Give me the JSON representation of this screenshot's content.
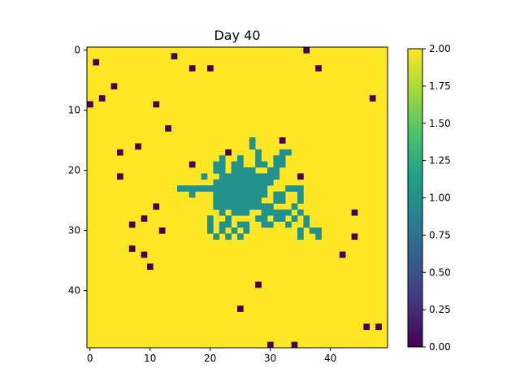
{
  "chart_data": {
    "type": "heatmap",
    "title": "Day 40",
    "xlabel": "",
    "ylabel": "",
    "grid_size": [
      50,
      50
    ],
    "xlim": [
      -0.5,
      49.5
    ],
    "ylim": [
      49.5,
      -0.5
    ],
    "x_ticks": [
      0,
      10,
      20,
      30,
      40
    ],
    "y_ticks": [
      0,
      10,
      20,
      30,
      40
    ],
    "colormap": "viridis",
    "colors": {
      "0": "#440154",
      "1": "#21918c",
      "2": "#fde725"
    },
    "background_value": 2,
    "colorbar": {
      "range": [
        0,
        2
      ],
      "ticks": [
        "0.00",
        "0.25",
        "0.50",
        "0.75",
        "1.00",
        "1.25",
        "1.50",
        "1.75",
        "2.00"
      ],
      "gradient": [
        "#440154",
        "#46327e",
        "#365c8d",
        "#277f8e",
        "#1fa187",
        "#4ac16d",
        "#a0da39",
        "#fde725"
      ]
    },
    "value_0_cells": [
      [
        36,
        0
      ],
      [
        1,
        2
      ],
      [
        14,
        1
      ],
      [
        17,
        3
      ],
      [
        20,
        3
      ],
      [
        38,
        3
      ],
      [
        4,
        6
      ],
      [
        2,
        8
      ],
      [
        47,
        8
      ],
      [
        0,
        9
      ],
      [
        11,
        9
      ],
      [
        13,
        13
      ],
      [
        32,
        15
      ],
      [
        8,
        16
      ],
      [
        5,
        17
      ],
      [
        23,
        17
      ],
      [
        17,
        19
      ],
      [
        5,
        21
      ],
      [
        35,
        21
      ],
      [
        11,
        26
      ],
      [
        44,
        27
      ],
      [
        9,
        28
      ],
      [
        7,
        29
      ],
      [
        12,
        30
      ],
      [
        44,
        31
      ],
      [
        7,
        33
      ],
      [
        9,
        34
      ],
      [
        42,
        34
      ],
      [
        10,
        36
      ],
      [
        28,
        39
      ],
      [
        25,
        43
      ],
      [
        46,
        46
      ],
      [
        48,
        46
      ],
      [
        30,
        49
      ],
      [
        34,
        49
      ]
    ],
    "value_1_cells": [
      [
        27,
        15
      ],
      [
        27,
        16
      ],
      [
        28,
        17
      ],
      [
        32,
        17
      ],
      [
        33,
        17
      ],
      [
        22,
        18
      ],
      [
        25,
        18
      ],
      [
        28,
        18
      ],
      [
        31,
        18
      ],
      [
        32,
        18
      ],
      [
        21,
        19
      ],
      [
        22,
        19
      ],
      [
        24,
        19
      ],
      [
        25,
        19
      ],
      [
        28,
        19
      ],
      [
        29,
        19
      ],
      [
        31,
        19
      ],
      [
        32,
        19
      ],
      [
        21,
        20
      ],
      [
        22,
        20
      ],
      [
        24,
        20
      ],
      [
        25,
        20
      ],
      [
        26,
        20
      ],
      [
        27,
        20
      ],
      [
        30,
        20
      ],
      [
        31,
        20
      ],
      [
        19,
        21
      ],
      [
        22,
        21
      ],
      [
        23,
        21
      ],
      [
        24,
        21
      ],
      [
        25,
        21
      ],
      [
        26,
        21
      ],
      [
        27,
        21
      ],
      [
        28,
        21
      ],
      [
        29,
        21
      ],
      [
        30,
        21
      ],
      [
        31,
        21
      ],
      [
        21,
        22
      ],
      [
        22,
        22
      ],
      [
        23,
        22
      ],
      [
        24,
        22
      ],
      [
        25,
        22
      ],
      [
        26,
        22
      ],
      [
        27,
        22
      ],
      [
        28,
        22
      ],
      [
        29,
        22
      ],
      [
        30,
        22
      ],
      [
        15,
        23
      ],
      [
        16,
        23
      ],
      [
        17,
        23
      ],
      [
        18,
        23
      ],
      [
        19,
        23
      ],
      [
        20,
        23
      ],
      [
        21,
        23
      ],
      [
        22,
        23
      ],
      [
        23,
        23
      ],
      [
        24,
        23
      ],
      [
        25,
        23
      ],
      [
        26,
        23
      ],
      [
        27,
        23
      ],
      [
        28,
        23
      ],
      [
        29,
        23
      ],
      [
        33,
        23
      ],
      [
        34,
        23
      ],
      [
        35,
        23
      ],
      [
        17,
        24
      ],
      [
        21,
        24
      ],
      [
        22,
        24
      ],
      [
        23,
        24
      ],
      [
        24,
        24
      ],
      [
        25,
        24
      ],
      [
        26,
        24
      ],
      [
        27,
        24
      ],
      [
        28,
        24
      ],
      [
        29,
        24
      ],
      [
        31,
        24
      ],
      [
        32,
        24
      ],
      [
        35,
        24
      ],
      [
        21,
        25
      ],
      [
        22,
        25
      ],
      [
        23,
        25
      ],
      [
        24,
        25
      ],
      [
        25,
        25
      ],
      [
        26,
        25
      ],
      [
        27,
        25
      ],
      [
        28,
        25
      ],
      [
        31,
        25
      ],
      [
        32,
        25
      ],
      [
        35,
        25
      ],
      [
        21,
        26
      ],
      [
        22,
        26
      ],
      [
        23,
        26
      ],
      [
        24,
        26
      ],
      [
        25,
        26
      ],
      [
        26,
        26
      ],
      [
        27,
        26
      ],
      [
        28,
        26
      ],
      [
        29,
        26
      ],
      [
        30,
        26
      ],
      [
        34,
        26
      ],
      [
        22,
        27
      ],
      [
        24,
        27
      ],
      [
        25,
        27
      ],
      [
        26,
        27
      ],
      [
        29,
        27
      ],
      [
        30,
        27
      ],
      [
        31,
        27
      ],
      [
        32,
        27
      ],
      [
        33,
        27
      ],
      [
        35,
        27
      ],
      [
        20,
        28
      ],
      [
        23,
        28
      ],
      [
        28,
        28
      ],
      [
        29,
        28
      ],
      [
        31,
        28
      ],
      [
        32,
        28
      ],
      [
        34,
        28
      ],
      [
        36,
        28
      ],
      [
        20,
        29
      ],
      [
        22,
        29
      ],
      [
        23,
        29
      ],
      [
        25,
        29
      ],
      [
        26,
        29
      ],
      [
        29,
        29
      ],
      [
        30,
        29
      ],
      [
        33,
        29
      ],
      [
        36,
        29
      ],
      [
        20,
        30
      ],
      [
        22,
        30
      ],
      [
        24,
        30
      ],
      [
        26,
        30
      ],
      [
        35,
        30
      ],
      [
        37,
        30
      ],
      [
        38,
        30
      ],
      [
        21,
        31
      ],
      [
        23,
        31
      ],
      [
        25,
        31
      ],
      [
        35,
        31
      ],
      [
        38,
        31
      ]
    ]
  }
}
